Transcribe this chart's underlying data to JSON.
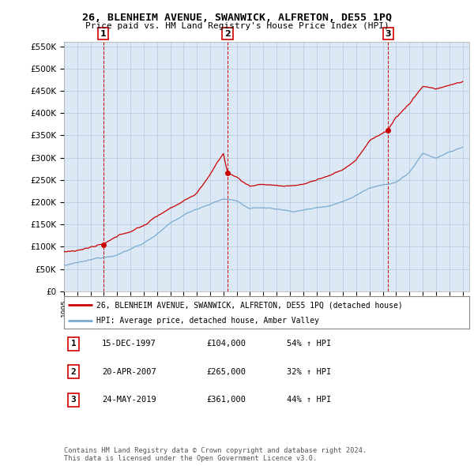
{
  "title": "26, BLENHEIM AVENUE, SWANWICK, ALFRETON, DE55 1PQ",
  "subtitle": "Price paid vs. HM Land Registry's House Price Index (HPI)",
  "ylim": [
    0,
    560000
  ],
  "yticks": [
    0,
    50000,
    100000,
    150000,
    200000,
    250000,
    300000,
    350000,
    400000,
    450000,
    500000,
    550000
  ],
  "ytick_labels": [
    "£0",
    "£50K",
    "£100K",
    "£150K",
    "£200K",
    "£250K",
    "£300K",
    "£350K",
    "£400K",
    "£450K",
    "£500K",
    "£550K"
  ],
  "sale_color": "#cc0000",
  "hpi_color": "#7aabcf",
  "vline_color": "#cc0000",
  "chart_bg": "#dce9f5",
  "sales": [
    {
      "date_num": 1997.96,
      "price": 104000,
      "label": "1"
    },
    {
      "date_num": 2007.3,
      "price": 265000,
      "label": "2"
    },
    {
      "date_num": 2019.39,
      "price": 361000,
      "label": "3"
    }
  ],
  "legend_sale_label": "26, BLENHEIM AVENUE, SWANWICK, ALFRETON, DE55 1PQ (detached house)",
  "legend_hpi_label": "HPI: Average price, detached house, Amber Valley",
  "table_rows": [
    {
      "num": "1",
      "date": "15-DEC-1997",
      "price": "£104,000",
      "change": "54% ↑ HPI"
    },
    {
      "num": "2",
      "date": "20-APR-2007",
      "price": "£265,000",
      "change": "32% ↑ HPI"
    },
    {
      "num": "3",
      "date": "24-MAY-2019",
      "price": "£361,000",
      "change": "44% ↑ HPI"
    }
  ],
  "footnote": "Contains HM Land Registry data © Crown copyright and database right 2024.\nThis data is licensed under the Open Government Licence v3.0.",
  "background_color": "#ffffff",
  "grid_color": "#b0c8e0"
}
